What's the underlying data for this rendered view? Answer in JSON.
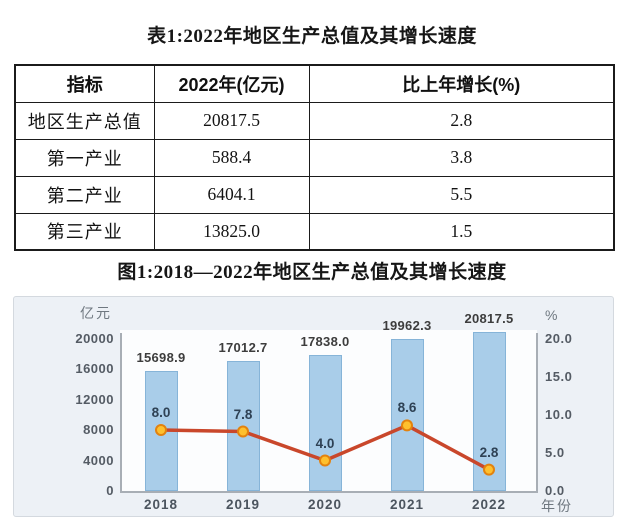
{
  "page": {
    "table_title": "表1:2022年地区生产总值及其增长速度",
    "figure_title": "图1:2018—2022年地区生产总值及其增长速度"
  },
  "table": {
    "headers": [
      "指标",
      "2022年(亿元)",
      "比上年增长(%)"
    ],
    "rows": [
      {
        "indicator": "地区生产总值",
        "value": "20817.5",
        "growth": "2.8"
      },
      {
        "indicator": "第一产业",
        "value": "588.4",
        "growth": "3.8"
      },
      {
        "indicator": "第二产业",
        "value": "6404.1",
        "growth": "5.5"
      },
      {
        "indicator": "第三产业",
        "value": "13825.0",
        "growth": "1.5"
      }
    ]
  },
  "chart_data": {
    "type": "bar",
    "categories": [
      "2018",
      "2019",
      "2020",
      "2021",
      "2022"
    ],
    "series": [
      {
        "name": "地区生产总值",
        "type": "bar",
        "values": [
          15698.9,
          17012.7,
          17838.0,
          19962.3,
          20817.5
        ],
        "labels": [
          "15698.9",
          "17012.7",
          "17838.0",
          "19962.3",
          "20817.5"
        ]
      },
      {
        "name": "比上年增长",
        "type": "line",
        "values": [
          8.0,
          7.8,
          4.0,
          8.6,
          2.8
        ],
        "labels": [
          "8.0",
          "7.8",
          "4.0",
          "8.6",
          "2.8"
        ]
      }
    ],
    "left_axis": {
      "label": "亿元",
      "ticks": [
        0,
        4000,
        8000,
        12000,
        16000,
        20000
      ],
      "max": 20000,
      "range": [
        0,
        21000
      ]
    },
    "right_axis": {
      "label": "%",
      "ticks": [
        "0.0",
        "5.0",
        "10.0",
        "15.0",
        "20.0"
      ],
      "tick_values": [
        0,
        5,
        10,
        15,
        20
      ],
      "max": 20,
      "range": [
        0,
        20
      ]
    },
    "xlabel": "年份",
    "grid": false,
    "legend": "none",
    "colors": {
      "bar_fill": "#a9cde9",
      "bar_border": "#86b4d8",
      "line": "#c9472b",
      "marker_fill": "#fec02e",
      "marker_border": "#e3820e",
      "panel_bg": "#edf1f6",
      "plot_bg": "#fcfdfe"
    }
  }
}
